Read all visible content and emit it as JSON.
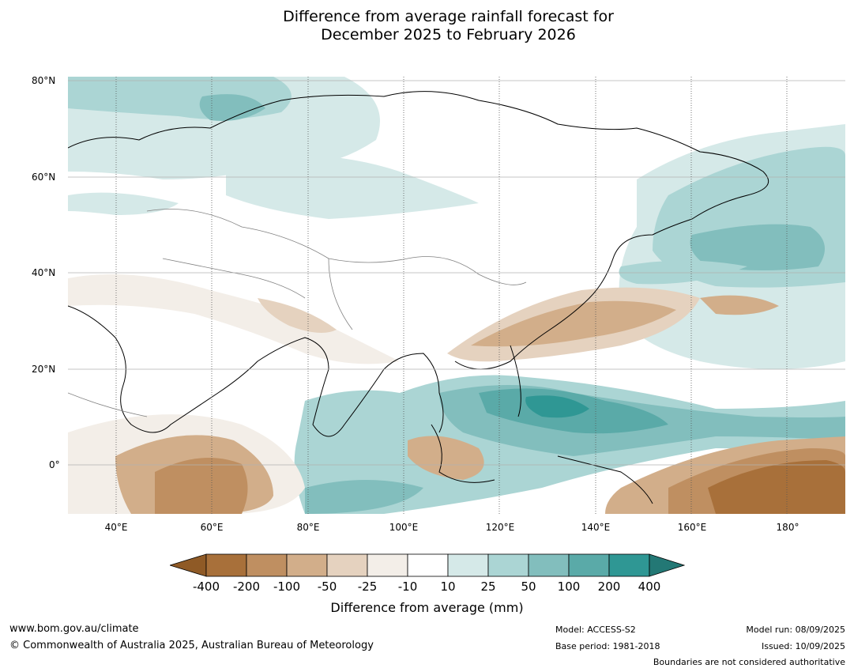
{
  "title_line1": "Difference from average rainfall forecast for",
  "title_line2": "December 2025 to February 2026",
  "lat_labels": [
    "80°N",
    "60°N",
    "40°N",
    "20°N",
    "0°"
  ],
  "lon_labels": [
    "40°E",
    "60°E",
    "80°E",
    "100°E",
    "120°E",
    "140°E",
    "160°E",
    "180°"
  ],
  "colorbar": {
    "ticks": [
      "-400",
      "-200",
      "-100",
      "-50",
      "-25",
      "-10",
      "10",
      "25",
      "50",
      "100",
      "200",
      "400"
    ],
    "colors": [
      "#a8703a",
      "#bf8f61",
      "#d2ae8a",
      "#e5d2bf",
      "#f3eee8",
      "#ffffff",
      "#d5e9e8",
      "#abd5d4",
      "#82bebd",
      "#5aaaa8",
      "#2f9794"
    ],
    "under_color": "#8f5a26",
    "over_color": "#237875",
    "title": "Difference from average (mm)"
  },
  "footer": {
    "website": "www.bom.gov.au/climate",
    "copyright": "© Commonwealth of Australia 2025, Australian Bureau of Meteorology",
    "model": "Model: ACCESS-S2",
    "base_period": "Base period: 1981-2018",
    "model_run": "Model run: 08/09/2025",
    "issued": "Issued: 10/09/2025",
    "boundaries_note": "Boundaries are not considered authoritative"
  }
}
